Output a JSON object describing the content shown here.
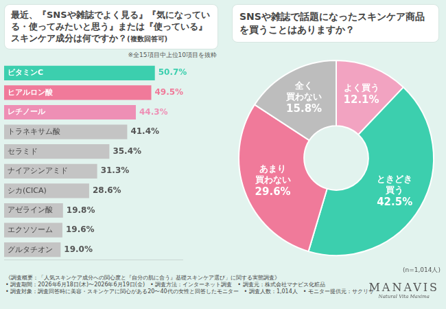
{
  "chart_data": [
    {
      "type": "bar",
      "title": "最近、『SNSや雑誌でよく見る』『気になっている・使ってみたいと思う』または『使っている』スキンケア成分は何ですか？",
      "subtitle": "(複数回答可)",
      "note": "※全15項目中上位10項目を抜粋",
      "orientation": "horizontal",
      "categories": [
        "ビタミンC",
        "ヒアルロン酸",
        "レチノール",
        "トラネキサム酸",
        "セラミド",
        "ナイアシンアミド",
        "シカ(CICA)",
        "アゼライン酸",
        "エクソソーム",
        "グルタチオン"
      ],
      "values": [
        50.7,
        49.5,
        44.3,
        41.4,
        35.4,
        31.3,
        28.6,
        19.8,
        19.6,
        19.0
      ],
      "value_labels": [
        "50.7%",
        "49.5%",
        "44.3%",
        "41.4%",
        "35.4%",
        "31.3%",
        "28.6%",
        "19.8%",
        "19.6%",
        "19.0%"
      ],
      "colors": [
        "#3ccfae",
        "#f07a9a",
        "#ee8fb5",
        "#c4c4c4",
        "#c4c4c4",
        "#c4c4c4",
        "#c4c4c4",
        "#c4c4c4",
        "#c4c4c4",
        "#c4c4c4"
      ],
      "xlim": [
        0,
        60
      ],
      "xticks": [],
      "grid": false,
      "tick_labels": false,
      "data_labels": true
    },
    {
      "type": "doughnut",
      "title": "SNSや雑誌で話題になったスキンケア商品を買うことはありますか？",
      "note": "(n=1,014人)",
      "categories": [
        "よく買う",
        "ときどき買う",
        "あまり買わない",
        "全く買わない"
      ],
      "values": [
        12.1,
        42.5,
        29.6,
        15.8
      ],
      "value_labels": [
        "12.1%",
        "42.5%",
        "29.6%",
        "15.8%"
      ],
      "colors": [
        "#f2a3c1",
        "#3ccfae",
        "#f07a9a",
        "#bdbdbd"
      ],
      "data_labels": true
    }
  ],
  "footer": {
    "heading": "《調査概要：「人気スキンケア成分への関心度と『自分の肌に合う』基礎スキンケア選び」に関する実態調査》",
    "lines": [
      "• 調査期間：2026年6月18日(木)〜2026年6月19日(金)　• 調査方法：インターネット調査　• 調査元：株式会社マナビス化粧品",
      "• 調査対象：調査回答時に美容・スキンケアに関心がある20〜40代の女性と回答したモニター　• 調査人数：1,014人　• モニター提供元：サクリサ"
    ],
    "brand": "MANAVIS",
    "brand_tagline": "Natural Vita Maxima"
  }
}
